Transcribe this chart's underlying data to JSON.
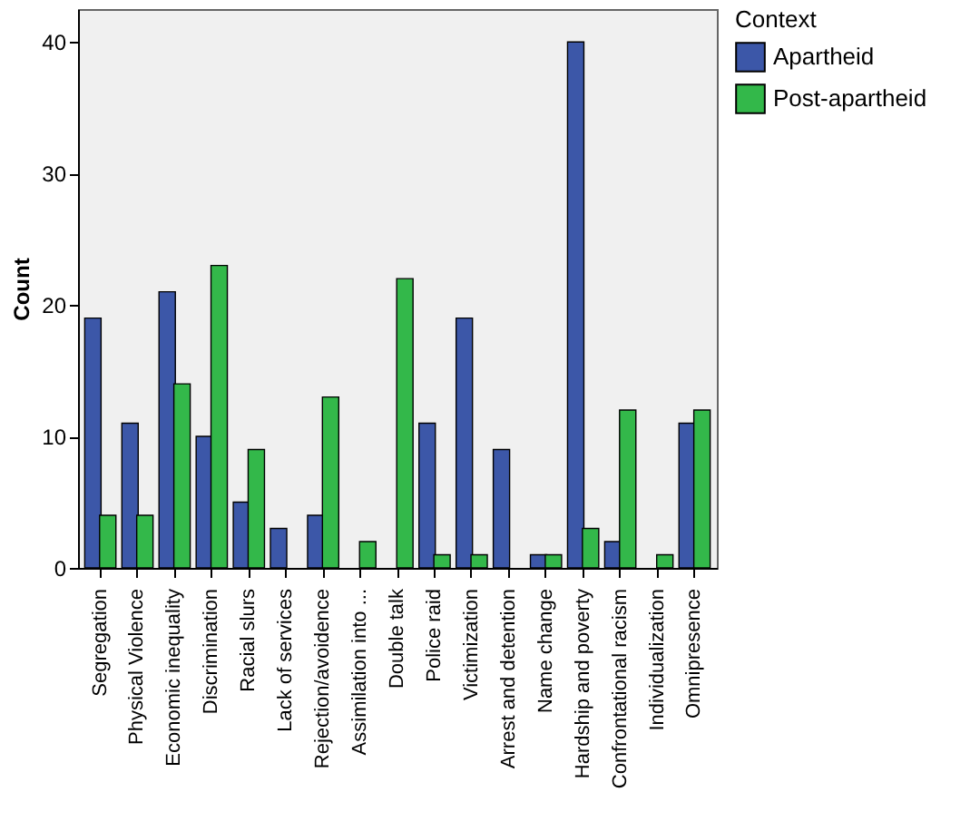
{
  "chart_data": {
    "type": "bar",
    "ylabel": "Count",
    "legend_title": "Context",
    "legend": "right",
    "grid": false,
    "categories": [
      "Segregation",
      "Physical Violence",
      "Economic inequality",
      "Discrimination",
      "Racial slurs",
      "Lack of services",
      "Rejection/avoidence",
      "Assimilation into ...",
      "Double talk",
      "Police raid",
      "Victimization",
      "Arrest and detention",
      "Name change",
      "Hardship and poverty",
      "Confrontational racism",
      "Individualization",
      "Omnipresence"
    ],
    "series": [
      {
        "name": "Apartheid",
        "color": "#3c57a8",
        "values": [
          19,
          11,
          21,
          10,
          5,
          3,
          4,
          null,
          null,
          11,
          19,
          9,
          1,
          40,
          2,
          null,
          11
        ]
      },
      {
        "name": "Post-apartheid",
        "color": "#33b84a",
        "values": [
          4,
          4,
          14,
          23,
          9,
          null,
          13,
          2,
          22,
          1,
          1,
          null,
          1,
          3,
          12,
          1,
          12
        ]
      }
    ],
    "ylim": [
      0,
      42.5
    ],
    "yticks": [
      0,
      10,
      20,
      30,
      40
    ]
  }
}
